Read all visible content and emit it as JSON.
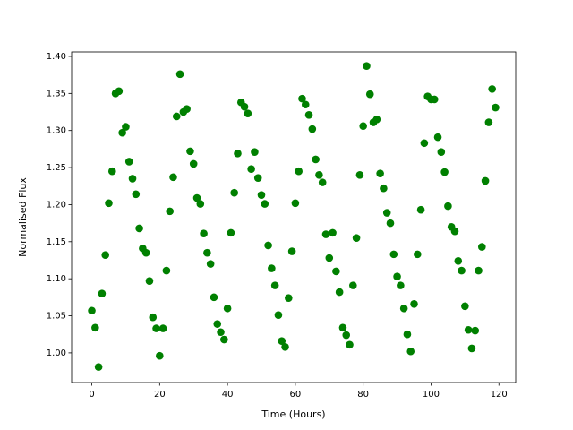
{
  "chart_data": {
    "type": "scatter",
    "xlabel": "Time (Hours)",
    "ylabel": "Normalised Flux",
    "color": "#008000",
    "grid": false,
    "xlim": [
      -5.95,
      124.95
    ],
    "ylim": [
      0.96,
      1.406
    ],
    "xticks": [
      0,
      20,
      40,
      60,
      80,
      100,
      120
    ],
    "yticks": [
      {
        "value": 1,
        "label": "1.00"
      },
      1.05,
      {
        "value": 1.1,
        "label": "1.10"
      },
      1.15,
      {
        "value": 1.2,
        "label": "1.20"
      },
      1.25,
      {
        "value": 1.3,
        "label": "1.30"
      },
      1.35,
      {
        "value": 1.4,
        "label": "1.40"
      }
    ],
    "x": [
      0,
      1,
      2,
      3,
      4,
      5,
      6,
      7,
      8,
      9,
      10,
      11,
      12,
      13,
      14,
      15,
      16,
      17,
      18,
      19,
      20,
      21,
      22,
      23,
      24,
      25,
      26,
      27,
      28,
      29,
      30,
      31,
      32,
      33,
      34,
      35,
      36,
      37,
      38,
      39,
      40,
      41,
      42,
      43,
      44,
      45,
      46,
      47,
      48,
      49,
      50,
      51,
      52,
      53,
      54,
      55,
      56,
      57,
      58,
      59,
      60,
      61,
      62,
      63,
      64,
      65,
      66,
      67,
      68,
      69,
      70,
      71,
      72,
      73,
      74,
      75,
      76,
      77,
      78,
      79,
      80,
      81,
      82,
      83,
      84,
      85,
      86,
      87,
      88,
      89,
      90,
      91,
      92,
      93,
      94,
      95,
      96,
      97,
      98,
      99,
      100,
      101,
      102,
      103,
      104,
      105,
      106,
      107,
      108,
      109,
      110,
      111,
      112,
      113,
      114,
      115,
      116,
      117,
      118,
      119
    ],
    "values": [
      1.057,
      1.034,
      0.981,
      1.08,
      1.132,
      1.202,
      1.245,
      1.35,
      1.353,
      1.297,
      1.305,
      1.258,
      1.235,
      1.214,
      1.168,
      1.141,
      1.135,
      1.097,
      1.048,
      1.033,
      0.996,
      1.033,
      1.111,
      1.191,
      1.237,
      1.319,
      1.376,
      1.325,
      1.329,
      1.272,
      1.255,
      1.209,
      1.201,
      1.161,
      1.135,
      1.12,
      1.075,
      1.039,
      1.028,
      1.018,
      1.06,
      1.162,
      1.216,
      1.269,
      1.338,
      1.332,
      1.323,
      1.248,
      1.271,
      1.236,
      1.213,
      1.201,
      1.145,
      1.114,
      1.091,
      1.051,
      1.016,
      1.008,
      1.074,
      1.137,
      1.202,
      1.245,
      1.343,
      1.335,
      1.321,
      1.302,
      1.261,
      1.24,
      1.23,
      1.16,
      1.128,
      1.162,
      1.11,
      1.082,
      1.034,
      1.024,
      1.011,
      1.091,
      1.155,
      1.24,
      1.306,
      1.387,
      1.349,
      1.311,
      1.315,
      1.242,
      1.222,
      1.189,
      1.175,
      1.133,
      1.103,
      1.091,
      1.06,
      1.025,
      1.002,
      1.066,
      1.133,
      1.193,
      1.283,
      1.346,
      1.342,
      1.342,
      1.291,
      1.271,
      1.244,
      1.198,
      1.17,
      1.164,
      1.124,
      1.111,
      1.063,
      1.031,
      1.006,
      1.03,
      1.111,
      1.143,
      1.232,
      1.311,
      1.356,
      1.331
    ]
  }
}
